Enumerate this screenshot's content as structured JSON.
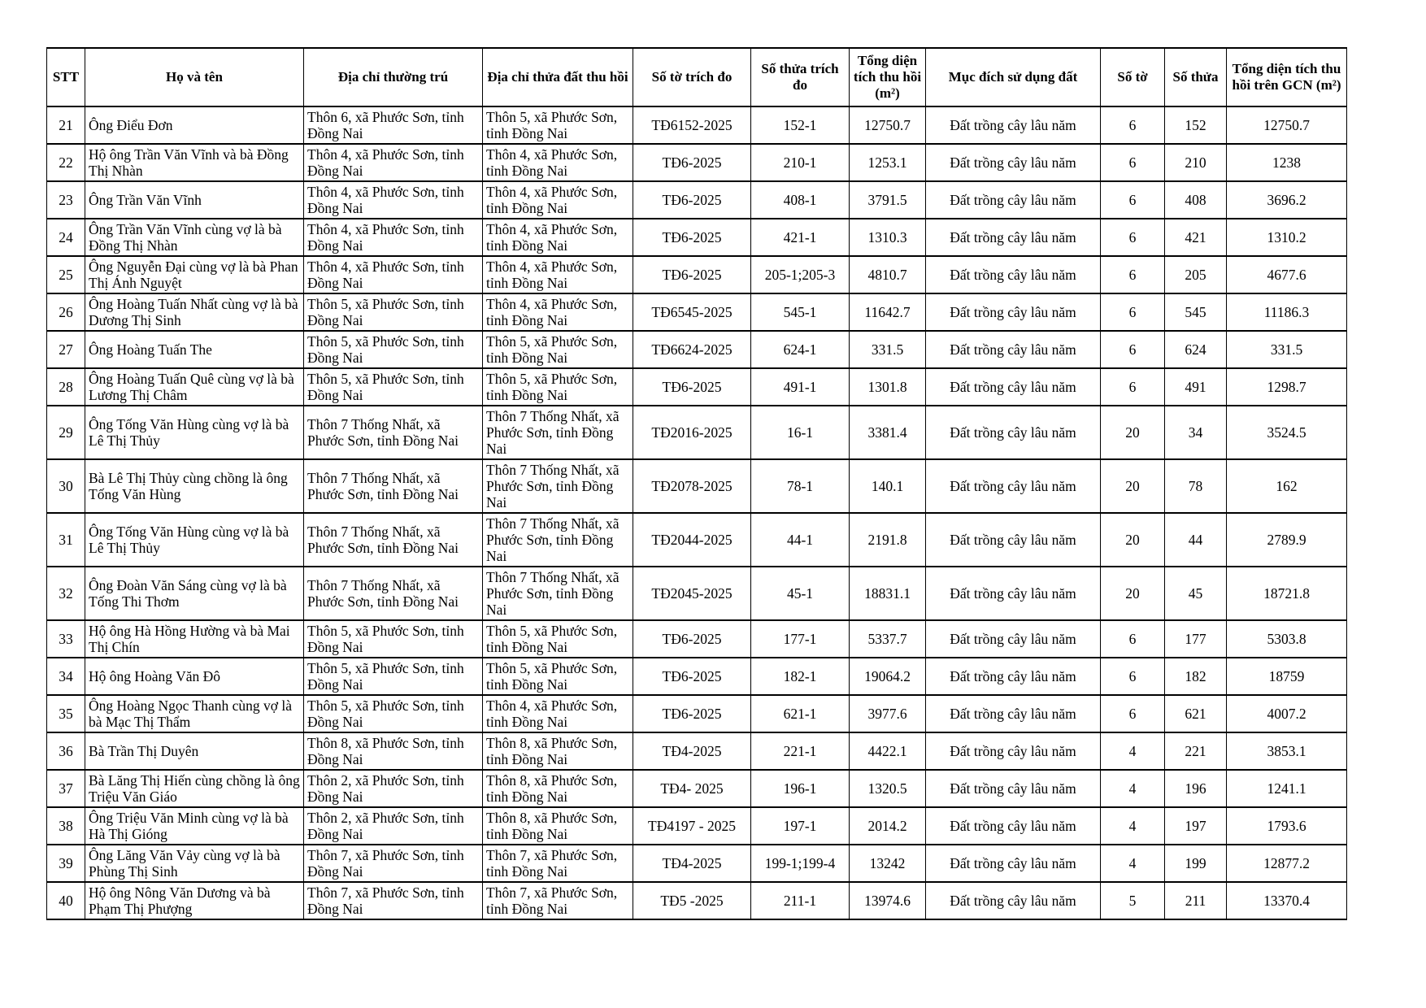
{
  "table": {
    "columns": [
      "STT",
      "Họ và tên",
      "Địa chỉ thường trú",
      "Địa chỉ thửa đất thu hồi",
      "Số tờ trích đo",
      "Số thửa trích đo",
      "Tổng diện tích thu hồi (m²)",
      "Mục đích sử dụng đất",
      "Số tờ",
      "Số thửa",
      "Tổng diện tích thu hồi trên GCN (m²)"
    ],
    "rows": [
      [
        "21",
        "Ông Điểu Đơn",
        "Thôn 6, xã Phước Sơn, tỉnh Đồng Nai",
        "Thôn 5, xã Phước Sơn, tỉnh Đồng Nai",
        "TĐ6152-2025",
        "152-1",
        "12750.7",
        "Đất trồng cây lâu năm",
        "6",
        "152",
        "12750.7"
      ],
      [
        "22",
        "Hộ ông Trần Văn Vĩnh và bà Đồng Thị Nhàn",
        "Thôn 4, xã Phước Sơn, tỉnh Đồng Nai",
        "Thôn 4, xã Phước Sơn, tỉnh Đồng Nai",
        "TĐ6-2025",
        "210-1",
        "1253.1",
        "Đất trồng cây lâu năm",
        "6",
        "210",
        "1238"
      ],
      [
        "23",
        "Ông Trần Văn Vĩnh",
        "Thôn 4, xã Phước Sơn, tỉnh Đồng Nai",
        "Thôn 4, xã Phước Sơn, tỉnh Đồng Nai",
        "TĐ6-2025",
        "408-1",
        "3791.5",
        "Đất trồng cây lâu năm",
        "6",
        "408",
        "3696.2"
      ],
      [
        "24",
        "Ông Trần Văn Vĩnh cùng vợ là bà Đồng Thị Nhàn",
        "Thôn 4, xã Phước Sơn, tỉnh Đồng Nai",
        "Thôn 4, xã Phước Sơn, tỉnh Đồng Nai",
        "TĐ6-2025",
        "421-1",
        "1310.3",
        "Đất trồng cây lâu năm",
        "6",
        "421",
        "1310.2"
      ],
      [
        "25",
        "Ông Nguyễn Đại cùng vợ là bà Phan Thị Ánh Nguyệt",
        "Thôn 4, xã Phước Sơn, tỉnh Đồng Nai",
        "Thôn 4, xã Phước Sơn, tỉnh Đồng Nai",
        "TĐ6-2025",
        "205-1;205-3",
        "4810.7",
        "Đất trồng cây lâu năm",
        "6",
        "205",
        "4677.6"
      ],
      [
        "26",
        "Ông Hoàng Tuấn Nhất cùng vợ là bà Dương Thị Sinh",
        "Thôn 5, xã Phước Sơn, tỉnh Đồng Nai",
        "Thôn 4, xã Phước Sơn, tỉnh Đồng Nai",
        "TĐ6545-2025",
        "545-1",
        "11642.7",
        "Đất trồng cây lâu năm",
        "6",
        "545",
        "11186.3"
      ],
      [
        "27",
        "Ông Hoàng Tuấn The",
        "Thôn 5, xã Phước Sơn, tỉnh Đồng Nai",
        "Thôn 5, xã Phước Sơn, tỉnh Đồng Nai",
        "TĐ6624-2025",
        "624-1",
        "331.5",
        "Đất trồng cây lâu năm",
        "6",
        "624",
        "331.5"
      ],
      [
        "28",
        "Ông Hoàng Tuấn Quê cùng vợ là bà Lương Thị Châm",
        "Thôn 5, xã Phước Sơn, tỉnh Đồng Nai",
        "Thôn 5, xã Phước Sơn, tỉnh Đồng Nai",
        "TĐ6-2025",
        "491-1",
        "1301.8",
        "Đất trồng cây lâu năm",
        "6",
        "491",
        "1298.7"
      ],
      [
        "29",
        "Ông Tống Văn Hùng cùng vợ là bà Lê Thị Thủy",
        "Thôn 7 Thống Nhất, xã Phước Sơn, tỉnh Đồng Nai",
        "Thôn 7 Thống Nhất, xã Phước Sơn, tỉnh Đồng Nai",
        "TĐ2016-2025",
        "16-1",
        "3381.4",
        "Đất trồng cây lâu năm",
        "20",
        "34",
        "3524.5"
      ],
      [
        "30",
        "Bà Lê Thị Thủy cùng chồng là ông Tống Văn Hùng",
        "Thôn 7 Thống Nhất, xã Phước Sơn, tỉnh Đồng Nai",
        "Thôn 7 Thống Nhất, xã Phước Sơn, tỉnh Đồng Nai",
        "TĐ2078-2025",
        "78-1",
        "140.1",
        "Đất trồng cây lâu năm",
        "20",
        "78",
        "162"
      ],
      [
        "31",
        "Ông Tống Văn Hùng cùng vợ là bà Lê Thị Thủy",
        "Thôn 7 Thống Nhất, xã Phước Sơn, tỉnh Đồng Nai",
        "Thôn 7 Thống Nhất, xã Phước Sơn, tỉnh Đồng Nai",
        "TĐ2044-2025",
        "44-1",
        "2191.8",
        "Đất trồng cây lâu năm",
        "20",
        "44",
        "2789.9"
      ],
      [
        "32",
        "Ông Đoàn Văn Sáng cùng vợ là bà Tống Thi Thơm",
        "Thôn 7 Thống Nhất, xã Phước Sơn, tỉnh Đồng Nai",
        "Thôn 7 Thống Nhất, xã Phước Sơn, tỉnh Đồng Nai",
        "TĐ2045-2025",
        "45-1",
        "18831.1",
        "Đất trồng cây lâu năm",
        "20",
        "45",
        "18721.8"
      ],
      [
        "33",
        "Hộ ông Hà Hồng Hường và bà Mai Thị Chín",
        "Thôn 5, xã Phước Sơn, tỉnh Đồng Nai",
        "Thôn 5, xã Phước Sơn, tỉnh Đồng Nai",
        "TĐ6-2025",
        "177-1",
        "5337.7",
        "Đất trồng cây lâu năm",
        "6",
        "177",
        "5303.8"
      ],
      [
        "34",
        "Hộ ông Hoàng Văn Đô",
        "Thôn 5, xã Phước Sơn, tỉnh Đồng Nai",
        "Thôn 5, xã Phước Sơn, tỉnh Đồng Nai",
        "TĐ6-2025",
        "182-1",
        "19064.2",
        "Đất trồng cây lâu năm",
        "6",
        "182",
        "18759"
      ],
      [
        "35",
        "Ông Hoàng Ngọc Thanh cùng vợ là bà Mạc Thị Thẩm",
        "Thôn 5, xã Phước Sơn, tỉnh Đồng Nai",
        "Thôn 4, xã Phước Sơn, tỉnh Đồng Nai",
        "TĐ6-2025",
        "621-1",
        "3977.6",
        "Đất trồng cây lâu năm",
        "6",
        "621",
        "4007.2"
      ],
      [
        "36",
        "Bà Trần Thị Duyên",
        "Thôn 8, xã Phước Sơn, tỉnh Đồng Nai",
        "Thôn 8, xã Phước Sơn, tỉnh Đồng Nai",
        "TĐ4-2025",
        "221-1",
        "4422.1",
        "Đất trồng cây lâu năm",
        "4",
        "221",
        "3853.1"
      ],
      [
        "37",
        "Bà Lăng Thị Hiến cùng chồng là ông Triệu Văn Giáo",
        "Thôn 2, xã Phước Sơn, tỉnh Đồng Nai",
        "Thôn 8, xã Phước Sơn, tỉnh Đồng Nai",
        "TĐ4- 2025",
        "196-1",
        "1320.5",
        "Đất trồng cây lâu năm",
        "4",
        "196",
        "1241.1"
      ],
      [
        "38",
        "Ông Triệu Văn Minh cùng vợ là bà Hà Thị Gióng",
        "Thôn 2, xã Phước Sơn, tỉnh Đồng Nai",
        "Thôn 8, xã Phước Sơn, tỉnh Đồng Nai",
        "TĐ4197 - 2025",
        "197-1",
        "2014.2",
        "Đất trồng cây lâu năm",
        "4",
        "197",
        "1793.6"
      ],
      [
        "39",
        "Ông Lăng Văn Vảy cùng vợ là bà Phùng Thị Sinh",
        "Thôn 7, xã Phước Sơn, tỉnh Đồng Nai",
        "Thôn 7, xã Phước Sơn, tỉnh Đồng Nai",
        "TĐ4-2025",
        "199-1;199-4",
        "13242",
        "Đất trồng cây lâu năm",
        "4",
        "199",
        "12877.2"
      ],
      [
        "40",
        "Hộ ông Nông Văn Dương và bà Phạm Thị Phượng",
        "Thôn 7, xã Phước Sơn, tỉnh Đồng Nai",
        "Thôn 7, xã Phước Sơn, tỉnh Đồng Nai",
        "TĐ5 -2025",
        "211-1",
        "13974.6",
        "Đất trồng cây lâu năm",
        "5",
        "211",
        "13370.4"
      ]
    ]
  }
}
